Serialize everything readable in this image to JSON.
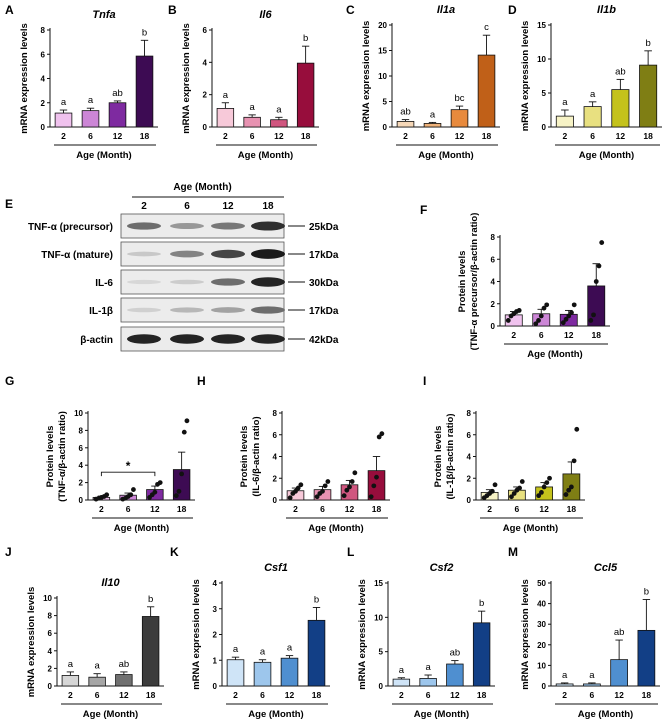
{
  "figure_title": "Age-dependent expression of inflammatory cytokines",
  "chart_data": [
    {
      "id": "A",
      "type": "bar",
      "title": "Tnfa",
      "ylabel": "mRNA expression levels",
      "xlabel": "Age (Month)",
      "categories": [
        "2",
        "6",
        "12",
        "18"
      ],
      "values": [
        1.15,
        1.35,
        2.0,
        5.85
      ],
      "errors": [
        0.25,
        0.2,
        0.15,
        1.3
      ],
      "ylim": [
        0,
        8
      ],
      "yticks": [
        0,
        2,
        4,
        6,
        8
      ],
      "letters": [
        "a",
        "a",
        "ab",
        "b"
      ],
      "colors": [
        "#f0c2ee",
        "#cc86d6",
        "#7e2aa0",
        "#3d0b53"
      ]
    },
    {
      "id": "B",
      "type": "bar",
      "title": "Il6",
      "ylabel": "mRNA expression levels",
      "xlabel": "Age (Month)",
      "categories": [
        "2",
        "6",
        "12",
        "18"
      ],
      "values": [
        1.15,
        0.6,
        0.45,
        3.95
      ],
      "errors": [
        0.35,
        0.15,
        0.15,
        1.05
      ],
      "ylim": [
        0,
        6
      ],
      "yticks": [
        0,
        2,
        4,
        6
      ],
      "letters": [
        "a",
        "a",
        "a",
        "b"
      ],
      "colors": [
        "#f7c9d9",
        "#e792b1",
        "#d0567f",
        "#970d3c"
      ]
    },
    {
      "id": "C",
      "type": "bar",
      "title": "Il1a",
      "ylabel": "mRNA expression levels",
      "xlabel": "Age (Month)",
      "categories": [
        "2",
        "6",
        "12",
        "18"
      ],
      "values": [
        1.1,
        0.7,
        3.4,
        14.1
      ],
      "errors": [
        0.35,
        0.2,
        0.7,
        3.9
      ],
      "ylim": [
        0,
        20
      ],
      "yticks": [
        0,
        5,
        10,
        15,
        20
      ],
      "letters": [
        "ab",
        "a",
        "bc",
        "c"
      ],
      "colors": [
        "#f6d8b8",
        "#efb27a",
        "#e88a3d",
        "#c06018"
      ]
    },
    {
      "id": "D",
      "type": "bar",
      "title": "Il1b",
      "ylabel": "mRNA expression levels",
      "xlabel": "Age (Month)",
      "categories": [
        "2",
        "6",
        "12",
        "18"
      ],
      "values": [
        1.6,
        3.0,
        5.5,
        9.1
      ],
      "errors": [
        0.9,
        0.7,
        1.5,
        2.1
      ],
      "ylim": [
        0,
        15
      ],
      "yticks": [
        0,
        5,
        10,
        15
      ],
      "letters": [
        "a",
        "a",
        "ab",
        "b"
      ],
      "colors": [
        "#f7f3c6",
        "#e8e080",
        "#c4c21c",
        "#7f7e14"
      ]
    },
    {
      "id": "F",
      "type": "bar",
      "title": "",
      "ylabel": "Protein levels (TNF-α precursor/β-actin ratio)",
      "ylabel_lines": [
        "Protein levels",
        "(TNF-α precursor/β-actin ratio)"
      ],
      "xlabel": "Age (Month)",
      "categories": [
        "2",
        "6",
        "12",
        "18"
      ],
      "values": [
        1.0,
        1.1,
        1.05,
        3.6
      ],
      "errors": [
        0.3,
        0.4,
        0.35,
        2.0
      ],
      "ylim": [
        0,
        8
      ],
      "yticks": [
        0,
        2,
        4,
        6,
        8
      ],
      "letters": [
        "",
        "",
        "",
        ""
      ],
      "colors": [
        "#f0c2ee",
        "#cc86d6",
        "#7e2aa0",
        "#3d0b53"
      ],
      "points": [
        [
          0.5,
          0.9,
          1.1,
          1.3,
          1.4
        ],
        [
          0.2,
          0.5,
          0.9,
          1.6,
          1.9
        ],
        [
          0.3,
          0.6,
          0.9,
          1.2,
          1.9
        ],
        [
          0.5,
          1.0,
          4.0,
          5.4,
          7.5
        ]
      ]
    },
    {
      "id": "G",
      "type": "bar",
      "title": "",
      "ylabel": "Protein levels (TNF-α/β-actin ratio)",
      "ylabel_lines": [
        "Protein levels",
        "(TNF-α/β-actin ratio)"
      ],
      "xlabel": "Age (Month)",
      "categories": [
        "2",
        "6",
        "12",
        "18"
      ],
      "values": [
        0.3,
        0.55,
        1.2,
        3.5
      ],
      "errors": [
        0.15,
        0.25,
        0.4,
        2.0
      ],
      "ylim": [
        0,
        10
      ],
      "yticks": [
        0,
        2,
        4,
        6,
        8,
        10
      ],
      "letters": [
        "",
        "",
        "",
        ""
      ],
      "colors": [
        "#f0c2ee",
        "#cc86d6",
        "#7e2aa0",
        "#3d0b53"
      ],
      "points": [
        [
          0.1,
          0.2,
          0.3,
          0.4,
          0.6
        ],
        [
          0.1,
          0.2,
          0.4,
          0.6,
          1.2
        ],
        [
          0.3,
          0.6,
          0.9,
          1.8,
          2.0
        ],
        [
          0.5,
          1.0,
          3.0,
          7.8,
          9.1
        ]
      ],
      "sig_bracket": {
        "from": "2",
        "to": "12",
        "label": "*"
      }
    },
    {
      "id": "H",
      "type": "bar",
      "title": "",
      "ylabel": "Protein levels (IL-6/β-actin ratio)",
      "ylabel_lines": [
        "Protein levels",
        "(IL-6/β-actin ratio)"
      ],
      "xlabel": "Age (Month)",
      "categories": [
        "2",
        "6",
        "12",
        "18"
      ],
      "values": [
        0.85,
        0.95,
        1.4,
        2.7
      ],
      "errors": [
        0.25,
        0.3,
        0.4,
        1.3
      ],
      "ylim": [
        0,
        8
      ],
      "yticks": [
        0,
        2,
        4,
        6,
        8
      ],
      "letters": [
        "",
        "",
        "",
        ""
      ],
      "colors": [
        "#f7c9d9",
        "#e792b1",
        "#d0567f",
        "#970d3c"
      ],
      "points": [
        [
          0.2,
          0.6,
          0.8,
          1.1,
          1.4
        ],
        [
          0.3,
          0.6,
          0.8,
          1.3,
          1.7
        ],
        [
          0.4,
          0.9,
          1.2,
          1.7,
          2.5
        ],
        [
          0.3,
          1.3,
          2.1,
          5.8,
          6.1
        ]
      ]
    },
    {
      "id": "I",
      "type": "bar",
      "title": "",
      "ylabel": "Protein levels (IL-1β/β-actin ratio)",
      "ylabel_lines": [
        "Protein levels",
        "(IL-1β/β-actin ratio)"
      ],
      "xlabel": "Age (Month)",
      "categories": [
        "2",
        "6",
        "12",
        "18"
      ],
      "values": [
        0.7,
        0.9,
        1.2,
        2.4
      ],
      "errors": [
        0.25,
        0.3,
        0.4,
        1.1
      ],
      "ylim": [
        0,
        8
      ],
      "yticks": [
        0,
        2,
        4,
        6,
        8
      ],
      "letters": [
        "",
        "",
        "",
        ""
      ],
      "colors": [
        "#f7f3c6",
        "#e8e080",
        "#c4c21c",
        "#7f7e14"
      ],
      "points": [
        [
          0.2,
          0.4,
          0.6,
          0.8,
          1.4
        ],
        [
          0.3,
          0.6,
          0.9,
          1.1,
          1.7
        ],
        [
          0.4,
          0.7,
          1.2,
          1.6,
          2.0
        ],
        [
          0.5,
          0.9,
          1.2,
          3.6,
          6.5
        ]
      ]
    },
    {
      "id": "J",
      "type": "bar",
      "title": "Il10",
      "ylabel": "mRNA expression levels",
      "xlabel": "Age (Month)",
      "categories": [
        "2",
        "6",
        "12",
        "18"
      ],
      "values": [
        1.2,
        1.0,
        1.3,
        7.9
      ],
      "errors": [
        0.4,
        0.4,
        0.3,
        1.1
      ],
      "ylim": [
        0,
        10
      ],
      "yticks": [
        0,
        2,
        4,
        6,
        8,
        10
      ],
      "letters": [
        "a",
        "a",
        "ab",
        "b"
      ],
      "colors": [
        "#d6d6d6",
        "#a6a6a6",
        "#707070",
        "#3c3c3c"
      ]
    },
    {
      "id": "K",
      "type": "bar",
      "title": "Csf1",
      "ylabel": "mRNA expression levels",
      "xlabel": "Age (Month)",
      "categories": [
        "2",
        "6",
        "12",
        "18"
      ],
      "values": [
        1.02,
        0.92,
        1.08,
        2.55
      ],
      "errors": [
        0.1,
        0.1,
        0.1,
        0.5
      ],
      "ylim": [
        0,
        4
      ],
      "yticks": [
        0,
        1,
        2,
        3,
        4
      ],
      "letters": [
        "a",
        "a",
        "a",
        "b"
      ],
      "colors": [
        "#cfe4f7",
        "#9dc6ec",
        "#4f8fd0",
        "#123f86"
      ]
    },
    {
      "id": "L",
      "type": "bar",
      "title": "Csf2",
      "ylabel": "mRNA expression levels",
      "xlabel": "Age (Month)",
      "categories": [
        "2",
        "6",
        "12",
        "18"
      ],
      "values": [
        1.0,
        1.1,
        3.2,
        9.2
      ],
      "errors": [
        0.2,
        0.5,
        0.5,
        1.7
      ],
      "ylim": [
        0,
        15
      ],
      "yticks": [
        0,
        5,
        10,
        15
      ],
      "letters": [
        "a",
        "a",
        "ab",
        "b"
      ],
      "colors": [
        "#cfe4f7",
        "#9dc6ec",
        "#4f8fd0",
        "#123f86"
      ]
    },
    {
      "id": "M",
      "type": "bar",
      "title": "Ccl5",
      "ylabel": "mRNA expression levels",
      "xlabel": "Age (Month)",
      "categories": [
        "2",
        "6",
        "12",
        "18"
      ],
      "values": [
        1.0,
        1.0,
        12.8,
        27.0
      ],
      "errors": [
        0.5,
        0.5,
        9.5,
        15.0
      ],
      "ylim": [
        0,
        50
      ],
      "yticks": [
        0,
        10,
        20,
        30,
        40,
        50
      ],
      "letters": [
        "a",
        "a",
        "ab",
        "b"
      ],
      "colors": [
        "#cfe4f7",
        "#9dc6ec",
        "#4f8fd0",
        "#123f86"
      ]
    }
  ],
  "western_blot": {
    "label": "E",
    "header": "Age (Month)",
    "lanes": [
      "2",
      "6",
      "12",
      "18"
    ],
    "rows": [
      {
        "name": "TNF-α (precursor)",
        "kda": "25kDa",
        "intensity": [
          0.55,
          0.35,
          0.5,
          0.85
        ]
      },
      {
        "name": "TNF-α (mature)",
        "kda": "17kDa",
        "intensity": [
          0.12,
          0.45,
          0.75,
          0.95
        ]
      },
      {
        "name": "IL-6",
        "kda": "30kDa",
        "intensity": [
          0.05,
          0.1,
          0.55,
          0.9
        ]
      },
      {
        "name": "IL-1β",
        "kda": "17kDa",
        "intensity": [
          0.08,
          0.2,
          0.3,
          0.55
        ]
      },
      {
        "name": "β-actin",
        "kda": "42kDa",
        "intensity": [
          0.9,
          0.9,
          0.9,
          0.9
        ]
      }
    ]
  }
}
